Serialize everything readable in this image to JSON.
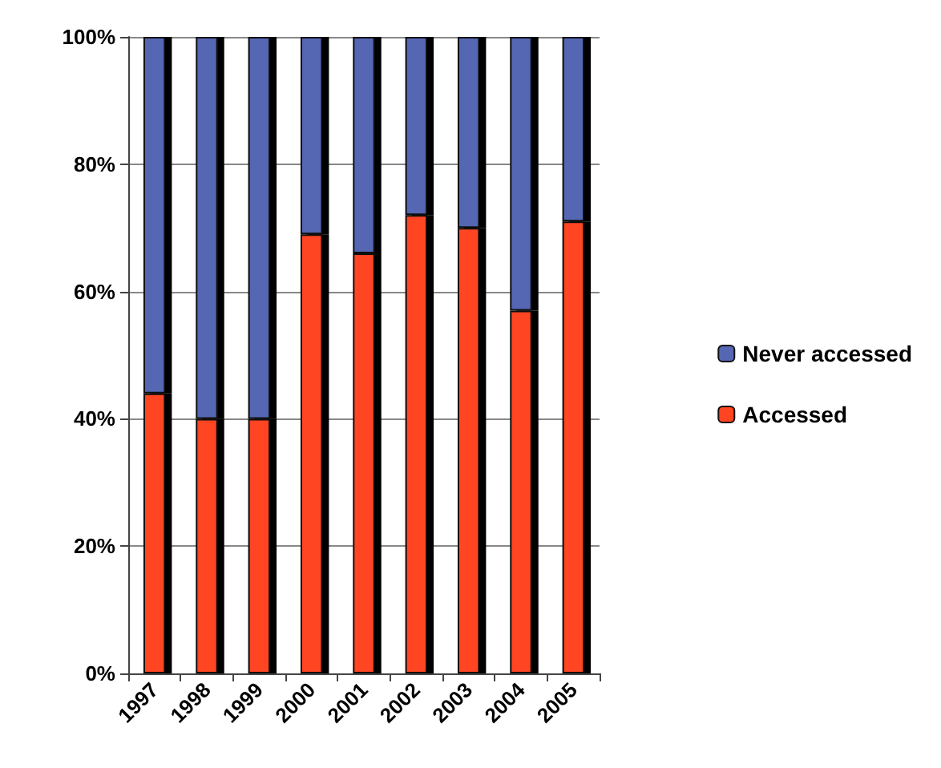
{
  "chart_data": {
    "type": "bar",
    "stacked": true,
    "categories": [
      "1997",
      "1998",
      "1999",
      "2000",
      "2001",
      "2002",
      "2003",
      "2004",
      "2005"
    ],
    "series": [
      {
        "name": "Accessed",
        "color": "#ff4422",
        "values": [
          44,
          40,
          40,
          69,
          66,
          72,
          70,
          57,
          71
        ]
      },
      {
        "name": "Never accessed",
        "color": "#5566b3",
        "values": [
          56,
          60,
          60,
          31,
          34,
          28,
          30,
          43,
          29
        ]
      }
    ],
    "ylim": [
      0,
      100
    ],
    "yticks": [
      {
        "value": 0,
        "label": "0%"
      },
      {
        "value": 20,
        "label": "20%"
      },
      {
        "value": 40,
        "label": "40%"
      },
      {
        "value": 60,
        "label": "60%"
      },
      {
        "value": 80,
        "label": "80%"
      },
      {
        "value": 100,
        "label": "100%"
      }
    ],
    "grid": "y",
    "legend": "right"
  }
}
